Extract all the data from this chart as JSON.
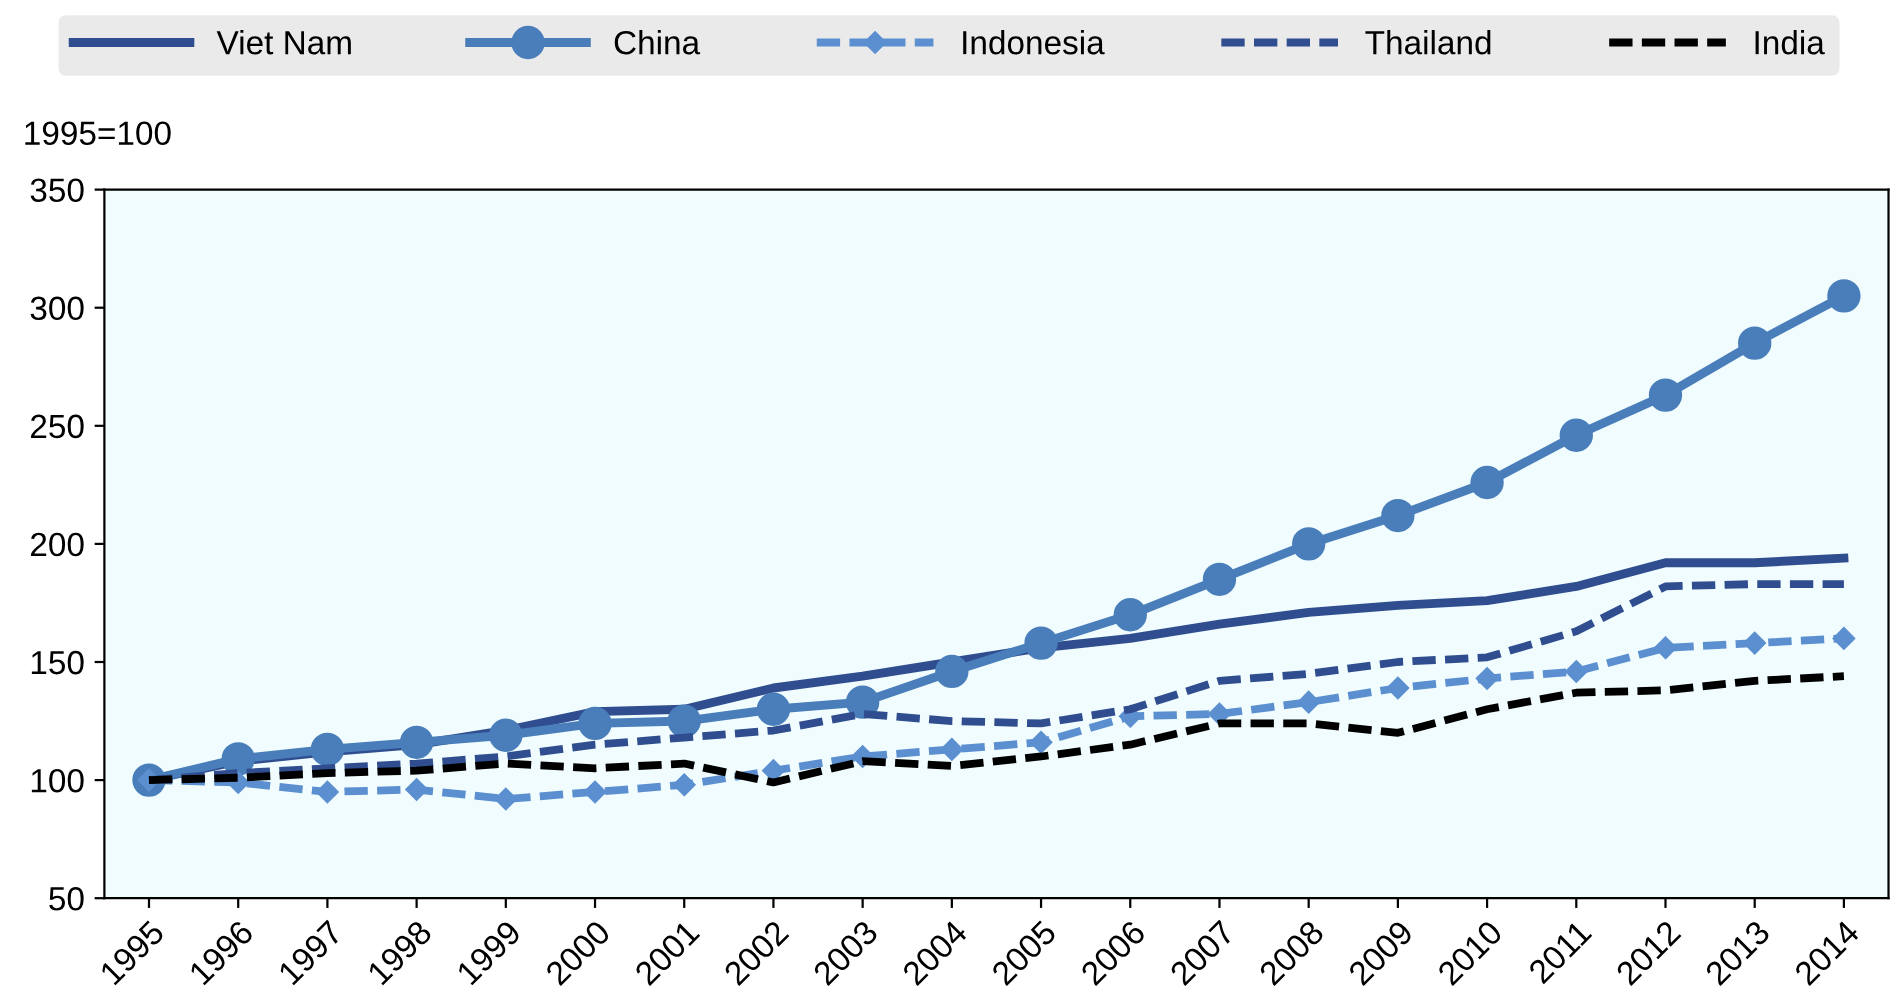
{
  "chart_data": {
    "type": "line",
    "ylabel": "1995=100",
    "categories": [
      "1995",
      "1996",
      "1997",
      "1998",
      "1999",
      "2000",
      "2001",
      "2002",
      "2003",
      "2004",
      "2005",
      "2006",
      "2007",
      "2008",
      "2009",
      "2010",
      "2011",
      "2012",
      "2013",
      "2014"
    ],
    "ylim": [
      50,
      350
    ],
    "yticks": [
      50,
      100,
      150,
      200,
      250,
      300,
      350
    ],
    "grid": false,
    "legend": "top",
    "series": [
      {
        "name": "Viet Nam",
        "color": "#2f4d8f",
        "line_style": "solid",
        "marker": "none",
        "values": [
          100,
          108,
          112,
          115,
          121,
          129,
          130,
          139,
          144,
          150,
          156,
          160,
          166,
          171,
          174,
          176,
          182,
          192,
          192,
          194
        ]
      },
      {
        "name": "China",
        "color": "#4a7ebb",
        "line_style": "solid",
        "marker": "circle",
        "values": [
          100,
          109,
          113,
          116,
          119,
          124,
          125,
          130,
          133,
          146,
          158,
          170,
          185,
          200,
          212,
          226,
          246,
          263,
          285,
          305
        ]
      },
      {
        "name": "Indonesia",
        "color": "#5b8fd0",
        "line_style": "dashed",
        "marker": "diamond",
        "values": [
          100,
          99,
          95,
          96,
          92,
          95,
          98,
          104,
          110,
          113,
          116,
          127,
          128,
          133,
          139,
          143,
          146,
          156,
          158,
          160
        ]
      },
      {
        "name": "Thailand",
        "color": "#2f4d8f",
        "line_style": "dashed",
        "marker": "none",
        "values": [
          100,
          103,
          105,
          107,
          110,
          115,
          118,
          121,
          128,
          125,
          124,
          130,
          142,
          145,
          150,
          152,
          163,
          182,
          183,
          183
        ]
      },
      {
        "name": "India",
        "color": "#000000",
        "line_style": "dashed",
        "marker": "none",
        "values": [
          100,
          101,
          103,
          104,
          107,
          105,
          107,
          99,
          108,
          106,
          110,
          115,
          124,
          124,
          120,
          130,
          137,
          138,
          142,
          144
        ]
      }
    ]
  }
}
